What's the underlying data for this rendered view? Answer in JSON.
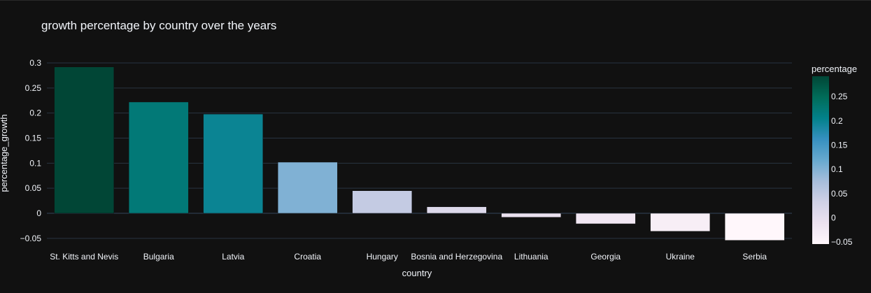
{
  "chart_data": {
    "type": "bar",
    "title": "growth percentage by country over the years",
    "xlabel": "country",
    "ylabel": "percentage_growth",
    "categories": [
      "St. Kitts and Nevis",
      "Bulgaria",
      "Latvia",
      "Croatia",
      "Hungary",
      "Bosnia and Herzegovina",
      "Lithuania",
      "Georgia",
      "Ukraine",
      "Serbia"
    ],
    "values": [
      0.292,
      0.222,
      0.198,
      0.102,
      0.045,
      0.013,
      -0.008,
      -0.021,
      -0.036,
      -0.054
    ],
    "ylim": [
      -0.06,
      0.305
    ],
    "yticks": [
      -0.05,
      0,
      0.05,
      0.1,
      0.15,
      0.2,
      0.25,
      0.3
    ],
    "ytick_labels": [
      "−0.05",
      "0",
      "0.05",
      "0.1",
      "0.15",
      "0.2",
      "0.25",
      "0.3"
    ],
    "grid": true,
    "colorbar": {
      "title": "percentage",
      "range": [
        -0.054,
        0.292
      ],
      "ticks": [
        -0.05,
        0,
        0.05,
        0.1,
        0.15,
        0.2,
        0.25
      ],
      "tick_labels": [
        "−0.05",
        "0",
        "0.05",
        "0.1",
        "0.15",
        "0.2",
        "0.25"
      ],
      "colorscale": [
        "#fff7fb",
        "#ece2f0",
        "#d0d1e6",
        "#a6bddb",
        "#67a9cf",
        "#3690c0",
        "#02818a",
        "#016c59",
        "#014636"
      ]
    }
  },
  "colors": {
    "background": "#111111",
    "grid": "#283442",
    "text": "#f2f5fa"
  }
}
